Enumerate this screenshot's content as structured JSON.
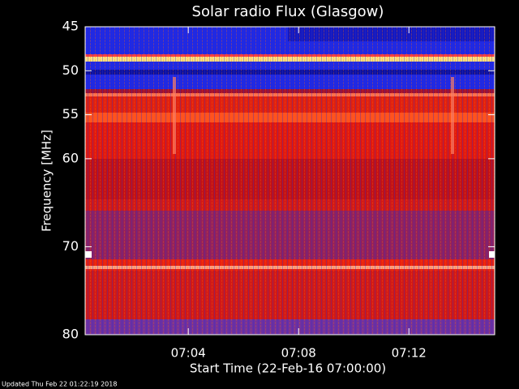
{
  "chart_data": {
    "type": "spectrogram",
    "title": "Solar radio Flux (Glasgow)",
    "ylabel": "Frequency [MHz]",
    "xlabel": "Start Time (22-Feb-16 07:00:00)",
    "footer": "Updated Thu Feb 22 01:22:19 2018",
    "ylim": [
      45,
      80
    ],
    "yticks": [
      45,
      50,
      55,
      60,
      70,
      80
    ],
    "xlim": [
      0.26,
      15.11
    ],
    "xticks": [
      {
        "value": 4,
        "label": "07:04"
      },
      {
        "value": 8,
        "label": "07:08"
      },
      {
        "value": 12,
        "label": "07:12"
      }
    ]
  }
}
